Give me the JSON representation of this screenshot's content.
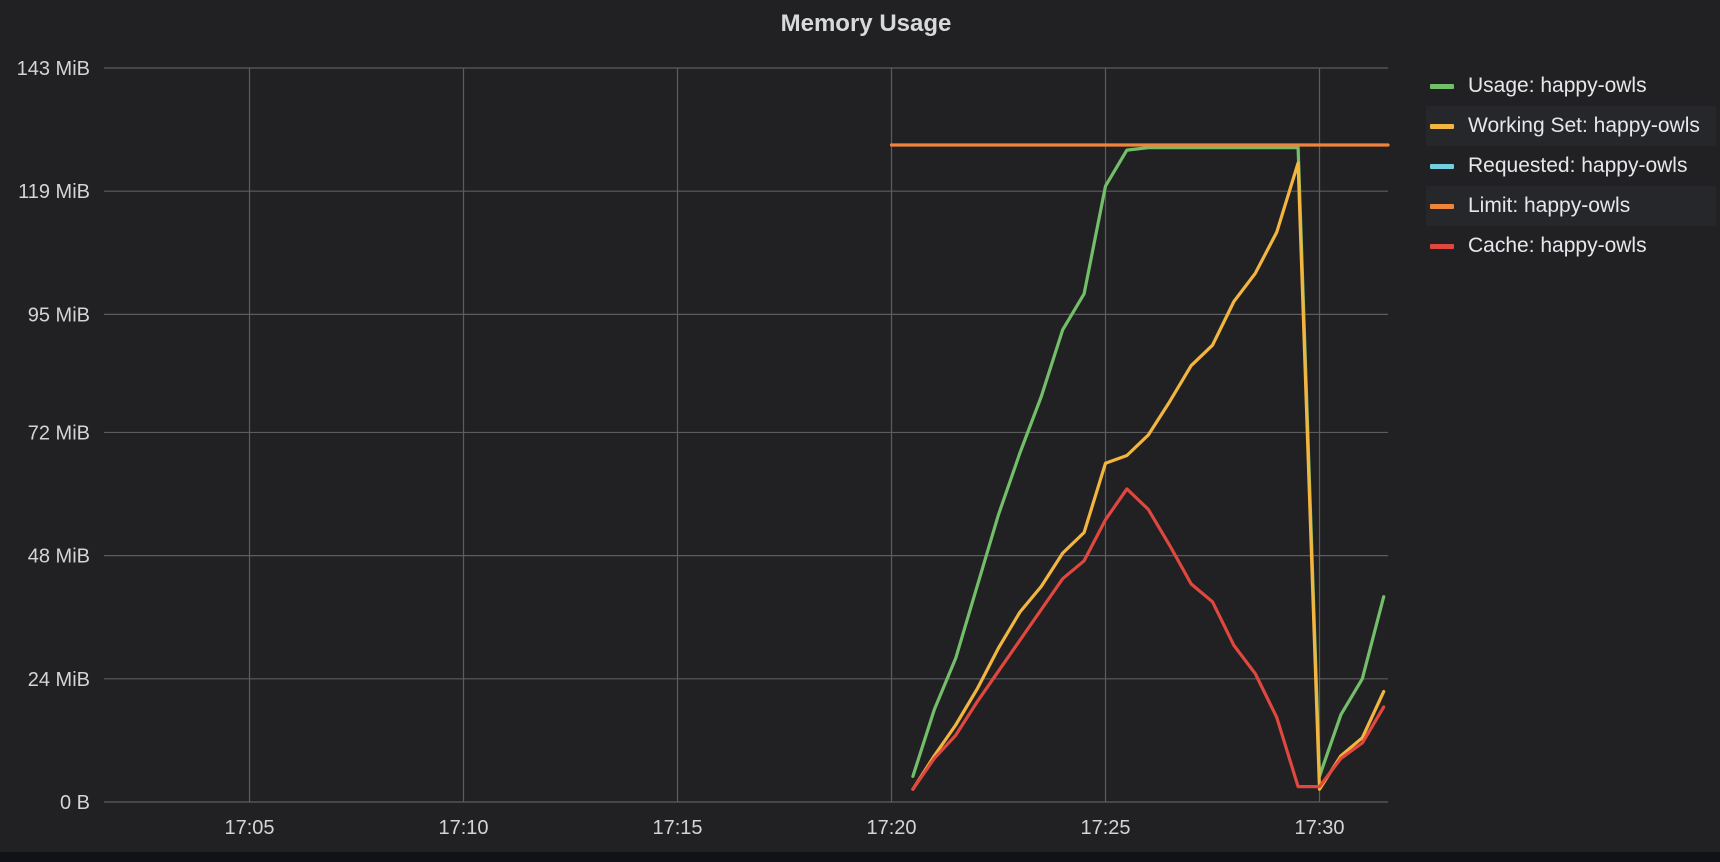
{
  "chart_data": {
    "type": "line",
    "title": "Memory Usage",
    "xlabel": "",
    "ylabel": "",
    "x_unit": "minutes after 17:00",
    "xlim": [
      1.6,
      31.6
    ],
    "ylim": [
      0,
      143
    ],
    "yticks": [
      {
        "value": 0,
        "label": "0 B"
      },
      {
        "value": 24,
        "label": "24 MiB"
      },
      {
        "value": 48,
        "label": "48 MiB"
      },
      {
        "value": 72,
        "label": "72 MiB"
      },
      {
        "value": 95,
        "label": "95 MiB"
      },
      {
        "value": 119,
        "label": "119 MiB"
      },
      {
        "value": 143,
        "label": "143 MiB"
      }
    ],
    "xticks": [
      {
        "value": 5,
        "label": "17:05"
      },
      {
        "value": 10,
        "label": "17:10"
      },
      {
        "value": 15,
        "label": "17:15"
      },
      {
        "value": 20,
        "label": "17:20"
      },
      {
        "value": 25,
        "label": "17:25"
      },
      {
        "value": 30,
        "label": "17:30"
      }
    ],
    "grid": true,
    "legend_position": "right",
    "series": [
      {
        "name": "Usage: happy-owls",
        "color": "#73bf69",
        "x": [
          20.5,
          21,
          21.5,
          22,
          22.5,
          23,
          23.5,
          24,
          24.5,
          25,
          25.5,
          26,
          26.5,
          27,
          27.5,
          28,
          28.5,
          29,
          29.5,
          30,
          30.5,
          31,
          31.5
        ],
        "y": [
          5,
          18,
          28,
          42,
          56,
          68,
          79,
          92,
          99,
          120,
          127,
          127.5,
          127.5,
          127.5,
          127.5,
          127.5,
          127.5,
          127.5,
          127.5,
          5,
          17,
          24,
          40
        ]
      },
      {
        "name": "Working Set: happy-owls",
        "color": "#f2b640",
        "x": [
          20.5,
          21,
          21.5,
          22,
          22.5,
          23,
          23.5,
          24,
          24.5,
          25,
          25.5,
          26,
          26.5,
          27,
          27.5,
          28,
          28.5,
          29,
          29.5,
          30,
          30.5,
          31,
          31.5
        ],
        "y": [
          2.5,
          9,
          15,
          22,
          30,
          37,
          42,
          48.5,
          52.5,
          66,
          67.5,
          71.5,
          78,
          85,
          89,
          97.5,
          103,
          111,
          124.5,
          2.5,
          9,
          12.5,
          21.5
        ]
      },
      {
        "name": "Requested: happy-owls",
        "color": "#73cfe0",
        "x": [],
        "y": []
      },
      {
        "name": "Limit: happy-owls",
        "color": "#ef843c",
        "x": [
          20,
          31.6
        ],
        "y": [
          128,
          128
        ]
      },
      {
        "name": "Cache: happy-owls",
        "color": "#e0473e",
        "x": [
          20.5,
          21,
          21.5,
          22,
          22.5,
          23,
          23.5,
          24,
          24.5,
          25,
          25.5,
          26,
          26.5,
          27,
          27.5,
          28,
          28.5,
          29,
          29.5,
          30,
          30.5,
          31,
          31.5
        ],
        "y": [
          2.5,
          8.5,
          13,
          19.5,
          25.5,
          31.5,
          37.5,
          43.5,
          47,
          55,
          61,
          57,
          50,
          42.5,
          39,
          30.5,
          25,
          16.5,
          3,
          3,
          8.5,
          11.5,
          18.5
        ]
      }
    ]
  }
}
